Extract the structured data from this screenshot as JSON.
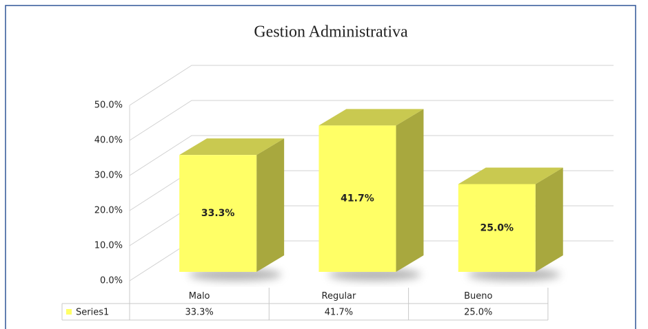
{
  "chart_data": {
    "type": "bar3d",
    "title": "Gestion Administrativa",
    "categories": [
      "Malo",
      "Regular",
      "Bueno"
    ],
    "series": [
      {
        "name": "Series1",
        "color": "#ffff66",
        "values": [
          33.3,
          41.7,
          25.0
        ],
        "value_labels": [
          "33.3%",
          "41.7%",
          "25.0%"
        ]
      }
    ],
    "ylim": [
      0,
      50
    ],
    "yticks": [
      {
        "value": 0,
        "label": "0.0%"
      },
      {
        "value": 10,
        "label": "10.0%"
      },
      {
        "value": 20,
        "label": "20.0%"
      },
      {
        "value": 30,
        "label": "30.0%"
      },
      {
        "value": 40,
        "label": "40.0%"
      },
      {
        "value": 50,
        "label": "50.0%"
      }
    ],
    "grid": true,
    "data_table": true
  }
}
